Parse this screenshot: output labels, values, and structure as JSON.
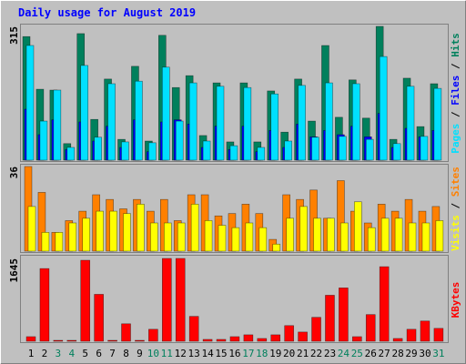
{
  "chart_data": [
    {
      "type": "bar",
      "title": "Daily usage for August 2019",
      "legend_separator": "/",
      "ylim": [
        0,
        315
      ],
      "yticks": [
        315
      ],
      "series": [
        {
          "name": "Hits",
          "color": "#00805C",
          "values": [
            291,
            167,
            165,
            39,
            298,
            96,
            191,
            49,
            221,
            45,
            294,
            171,
            199,
            58,
            182,
            43,
            182,
            43,
            163,
            66,
            191,
            92,
            270,
            101,
            189,
            99,
            315,
            49,
            193,
            79,
            180
          ]
        },
        {
          "name": "Files",
          "color": "#0000FF",
          "values": [
            120,
            60,
            95,
            25,
            90,
            45,
            80,
            30,
            95,
            20,
            90,
            95,
            85,
            30,
            80,
            25,
            80,
            20,
            70,
            30,
            85,
            55,
            70,
            60,
            80,
            55,
            110,
            30,
            75,
            55,
            70
          ]
        },
        {
          "name": "Pages",
          "color": "#00E0FF",
          "values": [
            270,
            92,
            165,
            30,
            223,
            54,
            180,
            43,
            186,
            41,
            219,
            92,
            182,
            45,
            174,
            34,
            171,
            30,
            156,
            45,
            176,
            54,
            182,
            56,
            180,
            49,
            244,
            39,
            174,
            56,
            169
          ]
        }
      ]
    },
    {
      "type": "bar",
      "legend_separator": "/",
      "ylim": [
        0,
        36
      ],
      "yticks": [
        36
      ],
      "series": [
        {
          "name": "Sites",
          "color": "#FF8000",
          "values": [
            36,
            25,
            8,
            13,
            17,
            24,
            22,
            18,
            22,
            17,
            22,
            13,
            24,
            24,
            15,
            16,
            20,
            16,
            5,
            24,
            22,
            26,
            14,
            30,
            17,
            12,
            20,
            17,
            22,
            17,
            19
          ]
        },
        {
          "name": "Visits",
          "color": "#FFFF00",
          "values": [
            19,
            8,
            8,
            12,
            14,
            17,
            17,
            16,
            20,
            12,
            12,
            12,
            20,
            13,
            11,
            10,
            12,
            10,
            3,
            14,
            19,
            14,
            14,
            12,
            21,
            10,
            14,
            14,
            12,
            12,
            13
          ]
        }
      ]
    },
    {
      "type": "bar",
      "ylim": [
        0,
        1645
      ],
      "yticks": [
        1645
      ],
      "categories": [
        "1",
        "2",
        "3",
        "4",
        "5",
        "6",
        "7",
        "8",
        "9",
        "10",
        "11",
        "12",
        "13",
        "14",
        "15",
        "16",
        "17",
        "18",
        "19",
        "20",
        "21",
        "22",
        "23",
        "24",
        "25",
        "26",
        "27",
        "28",
        "29",
        "30",
        "31"
      ],
      "category_colors": [
        "#000000",
        "#000000",
        "#00805C",
        "#00805C",
        "#000000",
        "#000000",
        "#000000",
        "#000000",
        "#000000",
        "#00805C",
        "#00805C",
        "#000000",
        "#000000",
        "#000000",
        "#000000",
        "#000000",
        "#00805C",
        "#00805C",
        "#000000",
        "#000000",
        "#000000",
        "#000000",
        "#000000",
        "#00805C",
        "#00805C",
        "#000000",
        "#000000",
        "#000000",
        "#000000",
        "#000000",
        "#00805C"
      ],
      "series": [
        {
          "name": "KBytes",
          "color": "#FF0000",
          "values": [
            91,
            1444,
            18,
            18,
            1609,
            932,
            18,
            347,
            18,
            238,
            1645,
            1645,
            494,
            37,
            37,
            91,
            128,
            55,
            128,
            311,
            183,
            475,
            914,
            1060,
            91,
            530,
            1481,
            55,
            238,
            402,
            256
          ]
        }
      ]
    }
  ]
}
